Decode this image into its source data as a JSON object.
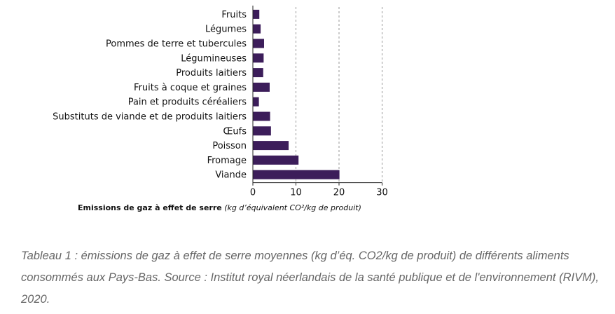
{
  "chart_data": {
    "type": "bar",
    "orientation": "horizontal",
    "categories": [
      "Fruits",
      "Légumes",
      "Pommes de terre et tubercules",
      "Légumineuses",
      "Produits laitiers",
      "Fruits à coque et graines",
      "Pain et produits céréaliers",
      "Substituts de viande et de produits laitiers",
      "Œufs",
      "Poisson",
      "Fromage",
      "Viande"
    ],
    "values": [
      1.5,
      1.8,
      2.6,
      2.5,
      2.4,
      3.9,
      1.4,
      4.0,
      4.2,
      8.3,
      10.6,
      20.1
    ],
    "x_ticks": [
      "0",
      "10",
      "20",
      "30"
    ],
    "xlim": [
      0,
      30
    ],
    "xlabel_bold": "Emissions de gaz à effet de serre",
    "xlabel_units": "(kg d’équivalent CO²/kg de produit)",
    "grid": "vertical dashed",
    "bar_color": "#3c1d5a"
  },
  "caption": "Tableau 1 : émissions de gaz à effet de serre moyennes (kg d’éq. CO2/kg de produit) de différents aliments consommés aux Pays-Bas. Source : Institut royal néerlandais de la santé publique et de l'environnement (RIVM), 2020."
}
